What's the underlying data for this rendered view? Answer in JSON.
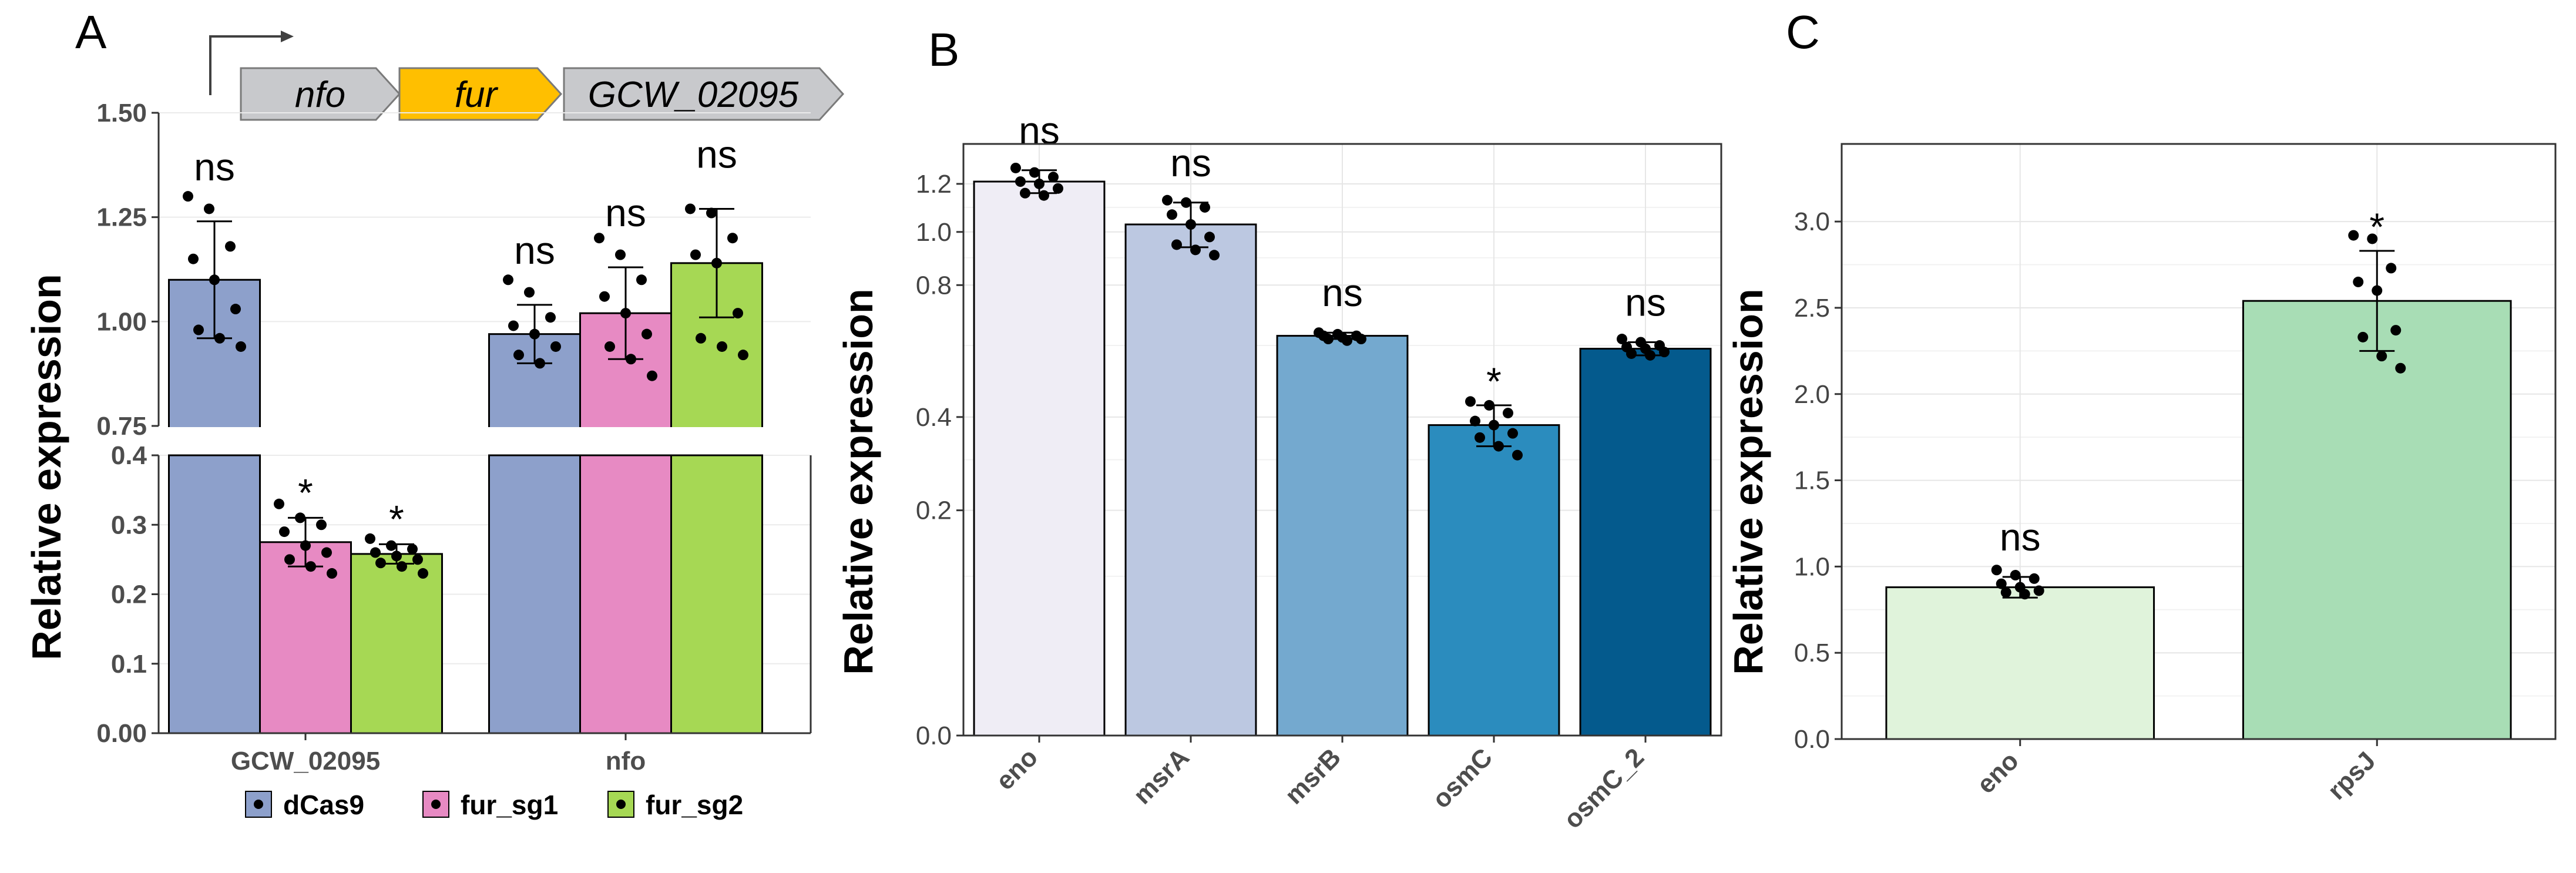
{
  "chart_data": [
    {
      "panel": "A",
      "type": "bar",
      "ylabel": "Relative expression",
      "categories": [
        "GCW_02095",
        "nfo"
      ],
      "axis_break": {
        "lower_range": [
          0,
          0.4
        ],
        "upper_range": [
          0.75,
          1.5
        ]
      },
      "lower_ticks": [
        "0.00",
        "0.1",
        "0.2",
        "0.3",
        "0.4"
      ],
      "upper_ticks": [
        "0.75",
        "1.00",
        "1.25",
        "1.50"
      ],
      "series": [
        {
          "name": "dCas9",
          "color": "#8da0cb",
          "values": [
            1.1,
            0.97
          ],
          "errors": [
            0.14,
            0.07
          ],
          "labels": [
            "ns",
            "ns"
          ],
          "points": [
            [
              1.3,
              1.27,
              1.18,
              1.15,
              1.1,
              1.03,
              0.98,
              0.96,
              0.94
            ],
            [
              1.1,
              1.07,
              1.01,
              0.99,
              0.97,
              0.94,
              0.92,
              0.9
            ]
          ]
        },
        {
          "name": "fur_sg1",
          "color": "#e78ac3",
          "values": [
            0.275,
            1.02
          ],
          "errors": [
            0.035,
            0.11
          ],
          "labels": [
            "*",
            "ns"
          ],
          "points": [
            [
              0.33,
              0.31,
              0.3,
              0.29,
              0.27,
              0.26,
              0.25,
              0.24,
              0.23
            ],
            [
              1.2,
              1.16,
              1.1,
              1.06,
              1.02,
              0.97,
              0.94,
              0.91,
              0.87
            ]
          ]
        },
        {
          "name": "fur_sg2",
          "color": "#a6d854",
          "values": [
            0.258,
            1.14
          ],
          "errors": [
            0.014,
            0.13
          ],
          "labels": [
            "*",
            "ns"
          ],
          "points": [
            [
              0.28,
              0.27,
              0.265,
              0.26,
              0.255,
              0.25,
              0.245,
              0.24,
              0.23
            ],
            [
              1.27,
              1.26,
              1.2,
              1.16,
              1.14,
              1.02,
              0.96,
              0.94,
              0.92
            ]
          ]
        }
      ],
      "legend": [
        "dCas9",
        "fur_sg1",
        "fur_sg2"
      ],
      "operon": [
        "nfo",
        "fur",
        "GCW_02095"
      ]
    },
    {
      "panel": "B",
      "type": "bar",
      "ylabel": "Relative expression",
      "categories": [
        "eno",
        "msrA",
        "msrB",
        "osmC",
        "osmC_2"
      ],
      "values": [
        1.21,
        1.03,
        0.63,
        0.38,
        0.59
      ],
      "errors": [
        0.05,
        0.09,
        0.01,
        0.05,
        0.02
      ],
      "labels": [
        "ns",
        "ns",
        "ns",
        "*",
        "ns"
      ],
      "colors": [
        "#efedf5",
        "#bcc8e1",
        "#74a9cf",
        "#2b8cbe",
        "#045a8d"
      ],
      "ylim": [
        0,
        1.38
      ],
      "ticks": [
        "0.0",
        "0.2",
        "0.4",
        "0.8",
        "1.0",
        "1.2"
      ],
      "points": [
        [
          1.27,
          1.25,
          1.23,
          1.21,
          1.2,
          1.18,
          1.16,
          1.15
        ],
        [
          1.13,
          1.12,
          1.1,
          1.07,
          1.03,
          0.98,
          0.95,
          0.93,
          0.91
        ],
        [
          0.64,
          0.635,
          0.63,
          0.63,
          0.625,
          0.62,
          0.62,
          0.615
        ],
        [
          0.44,
          0.43,
          0.41,
          0.39,
          0.38,
          0.36,
          0.35,
          0.33,
          0.31
        ],
        [
          0.62,
          0.61,
          0.6,
          0.595,
          0.59,
          0.58,
          0.575,
          0.57
        ]
      ]
    },
    {
      "panel": "C",
      "type": "bar",
      "ylabel": "Relative expression",
      "categories": [
        "eno",
        "rpsJ"
      ],
      "values": [
        0.88,
        2.54
      ],
      "errors": [
        0.06,
        0.29
      ],
      "labels": [
        "ns",
        "*"
      ],
      "colors": [
        "#e0f3db",
        "#a8ddb5"
      ],
      "ylim": [
        0,
        3.45
      ],
      "ticks": [
        "0.0",
        "0.5",
        "1.0",
        "1.5",
        "2.0",
        "2.5",
        "3.0"
      ],
      "points": [
        [
          0.98,
          0.95,
          0.93,
          0.9,
          0.88,
          0.86,
          0.85,
          0.84
        ],
        [
          2.92,
          2.9,
          2.73,
          2.65,
          2.6,
          2.37,
          2.33,
          2.22,
          2.15
        ]
      ]
    }
  ]
}
